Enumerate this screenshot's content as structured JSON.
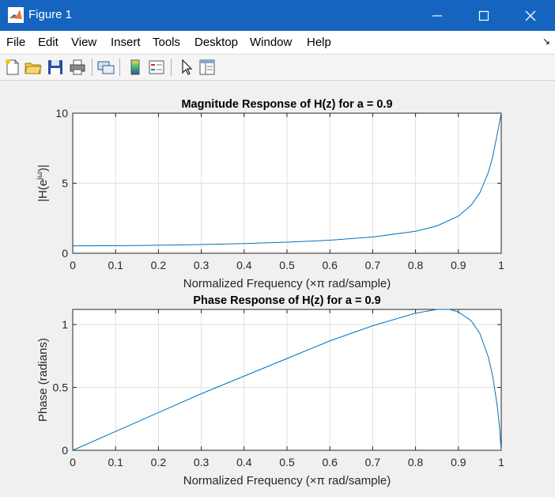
{
  "window": {
    "title": "Figure 1"
  },
  "menu": [
    "File",
    "Edit",
    "View",
    "Insert",
    "Tools",
    "Desktop",
    "Window",
    "Help"
  ],
  "toolbar_icons": [
    "new-figure-icon",
    "open-file-icon",
    "save-icon",
    "print-icon",
    "link-plot-icon",
    "colorbar-icon",
    "legend-icon",
    "edit-plot-icon",
    "property-inspector-icon"
  ],
  "chart_data": [
    {
      "type": "line",
      "title": "Magnitude Response of H(z) for a = 0.9",
      "xlabel": "Normalized Frequency (×π rad/sample)",
      "ylabel": "|H(e^{jω})|",
      "xlim": [
        0,
        1
      ],
      "ylim": [
        0,
        10
      ],
      "xticks": [
        "0",
        "0.1",
        "0.2",
        "0.3",
        "0.4",
        "0.5",
        "0.6",
        "0.7",
        "0.8",
        "0.9",
        "1"
      ],
      "yticks": [
        "0",
        "5",
        "10"
      ],
      "grid": true,
      "series_color": "#0072bd",
      "x": [
        0,
        0.1,
        0.2,
        0.3,
        0.4,
        0.5,
        0.6,
        0.7,
        0.8,
        0.85,
        0.9,
        0.93,
        0.95,
        0.97,
        0.98,
        0.99,
        1.0
      ],
      "y": [
        0.53,
        0.54,
        0.57,
        0.62,
        0.69,
        0.79,
        0.93,
        1.16,
        1.57,
        1.95,
        2.65,
        3.44,
        4.31,
        5.77,
        6.88,
        8.4,
        10.0
      ]
    },
    {
      "type": "line",
      "title": "Phase Response of H(z) for a = 0.9",
      "xlabel": "Normalized Frequency (×π rad/sample)",
      "ylabel": "Phase (radians)",
      "xlim": [
        0,
        1
      ],
      "ylim": [
        0,
        1.12
      ],
      "xticks": [
        "0",
        "0.1",
        "0.2",
        "0.3",
        "0.4",
        "0.5",
        "0.6",
        "0.7",
        "0.8",
        "0.9",
        "1"
      ],
      "yticks": [
        "0",
        "0.5",
        "1"
      ],
      "grid": true,
      "series_color": "#0072bd",
      "x": [
        0,
        0.1,
        0.2,
        0.3,
        0.4,
        0.5,
        0.6,
        0.7,
        0.8,
        0.85,
        0.88,
        0.9,
        0.93,
        0.95,
        0.97,
        0.98,
        0.99,
        0.995,
        1.0
      ],
      "y": [
        0,
        0.15,
        0.3,
        0.45,
        0.59,
        0.73,
        0.87,
        0.99,
        1.09,
        1.12,
        1.12,
        1.1,
        1.03,
        0.93,
        0.74,
        0.59,
        0.37,
        0.22,
        0.0
      ]
    }
  ]
}
